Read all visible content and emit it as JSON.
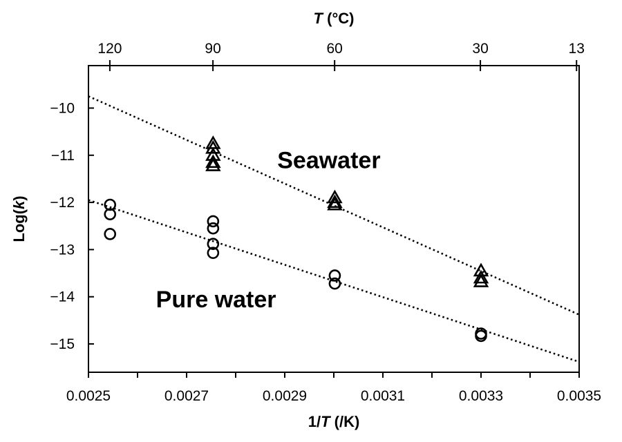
{
  "chart_data": {
    "type": "scatter",
    "title": "",
    "xlabel_prefix": "1/",
    "xlabel_var": "T",
    "xlabel_suffix": " (/K)",
    "ylabel_prefix": "Log(",
    "ylabel_var": "k",
    "ylabel_suffix": ")",
    "top_xlabel_var": "T",
    "top_xlabel_suffix": " (°C)",
    "xlim": [
      0.0025,
      0.0035
    ],
    "ylim": [
      -15.6,
      -9.1
    ],
    "x_ticks": [
      0.0025,
      0.0027,
      0.0029,
      0.0031,
      0.0033,
      0.0035
    ],
    "x_tick_labels": [
      "0.0025",
      "0.0027",
      "0.0029",
      "0.0031",
      "0.0033",
      "0.0035"
    ],
    "x_minor_ticks": [
      0.0026,
      0.0028,
      0.003,
      0.0032,
      0.0034
    ],
    "y_ticks": [
      -10,
      -11,
      -12,
      -13,
      -14,
      -15
    ],
    "y_tick_labels": [
      "−10",
      "−11",
      "−12",
      "−13",
      "−14",
      "−15"
    ],
    "top_ticks_celsius": [
      120,
      90,
      60,
      30,
      13
    ],
    "top_tick_labels": [
      "120",
      "90",
      "60",
      "30",
      "13"
    ],
    "grid": false,
    "legend": "none",
    "series": [
      {
        "name": "Seawater",
        "marker": "triangle",
        "points": [
          {
            "x": 0.002754,
            "y": -10.75
          },
          {
            "x": 0.002754,
            "y": -10.85
          },
          {
            "x": 0.002754,
            "y": -11.0
          },
          {
            "x": 0.002754,
            "y": -11.15
          },
          {
            "x": 0.002754,
            "y": -11.22
          },
          {
            "x": 0.003002,
            "y": -11.9
          },
          {
            "x": 0.003002,
            "y": -12.0
          },
          {
            "x": 0.003002,
            "y": -12.05
          },
          {
            "x": 0.0033,
            "y": -13.45
          },
          {
            "x": 0.0033,
            "y": -13.6
          },
          {
            "x": 0.0033,
            "y": -13.68
          }
        ],
        "fit_line": {
          "x": [
            0.0025,
            0.0035
          ],
          "y": [
            -9.75,
            -14.38
          ]
        }
      },
      {
        "name": "Pure water",
        "marker": "circle",
        "points": [
          {
            "x": 0.002544,
            "y": -12.05
          },
          {
            "x": 0.002544,
            "y": -12.25
          },
          {
            "x": 0.002544,
            "y": -12.67
          },
          {
            "x": 0.002754,
            "y": -12.4
          },
          {
            "x": 0.002754,
            "y": -12.55
          },
          {
            "x": 0.002754,
            "y": -12.88
          },
          {
            "x": 0.002754,
            "y": -13.07
          },
          {
            "x": 0.003002,
            "y": -13.55
          },
          {
            "x": 0.003002,
            "y": -13.72
          },
          {
            "x": 0.0033,
            "y": -14.78
          },
          {
            "x": 0.0033,
            "y": -14.83
          }
        ],
        "fit_line": {
          "x": [
            0.0025,
            0.0035
          ],
          "y": [
            -11.95,
            -15.38
          ]
        }
      }
    ],
    "annotations": [
      {
        "text": "Seawater",
        "x": 0.00299,
        "y": -11.1
      },
      {
        "text": "Pure water",
        "x": 0.00276,
        "y": -14.05
      }
    ]
  }
}
